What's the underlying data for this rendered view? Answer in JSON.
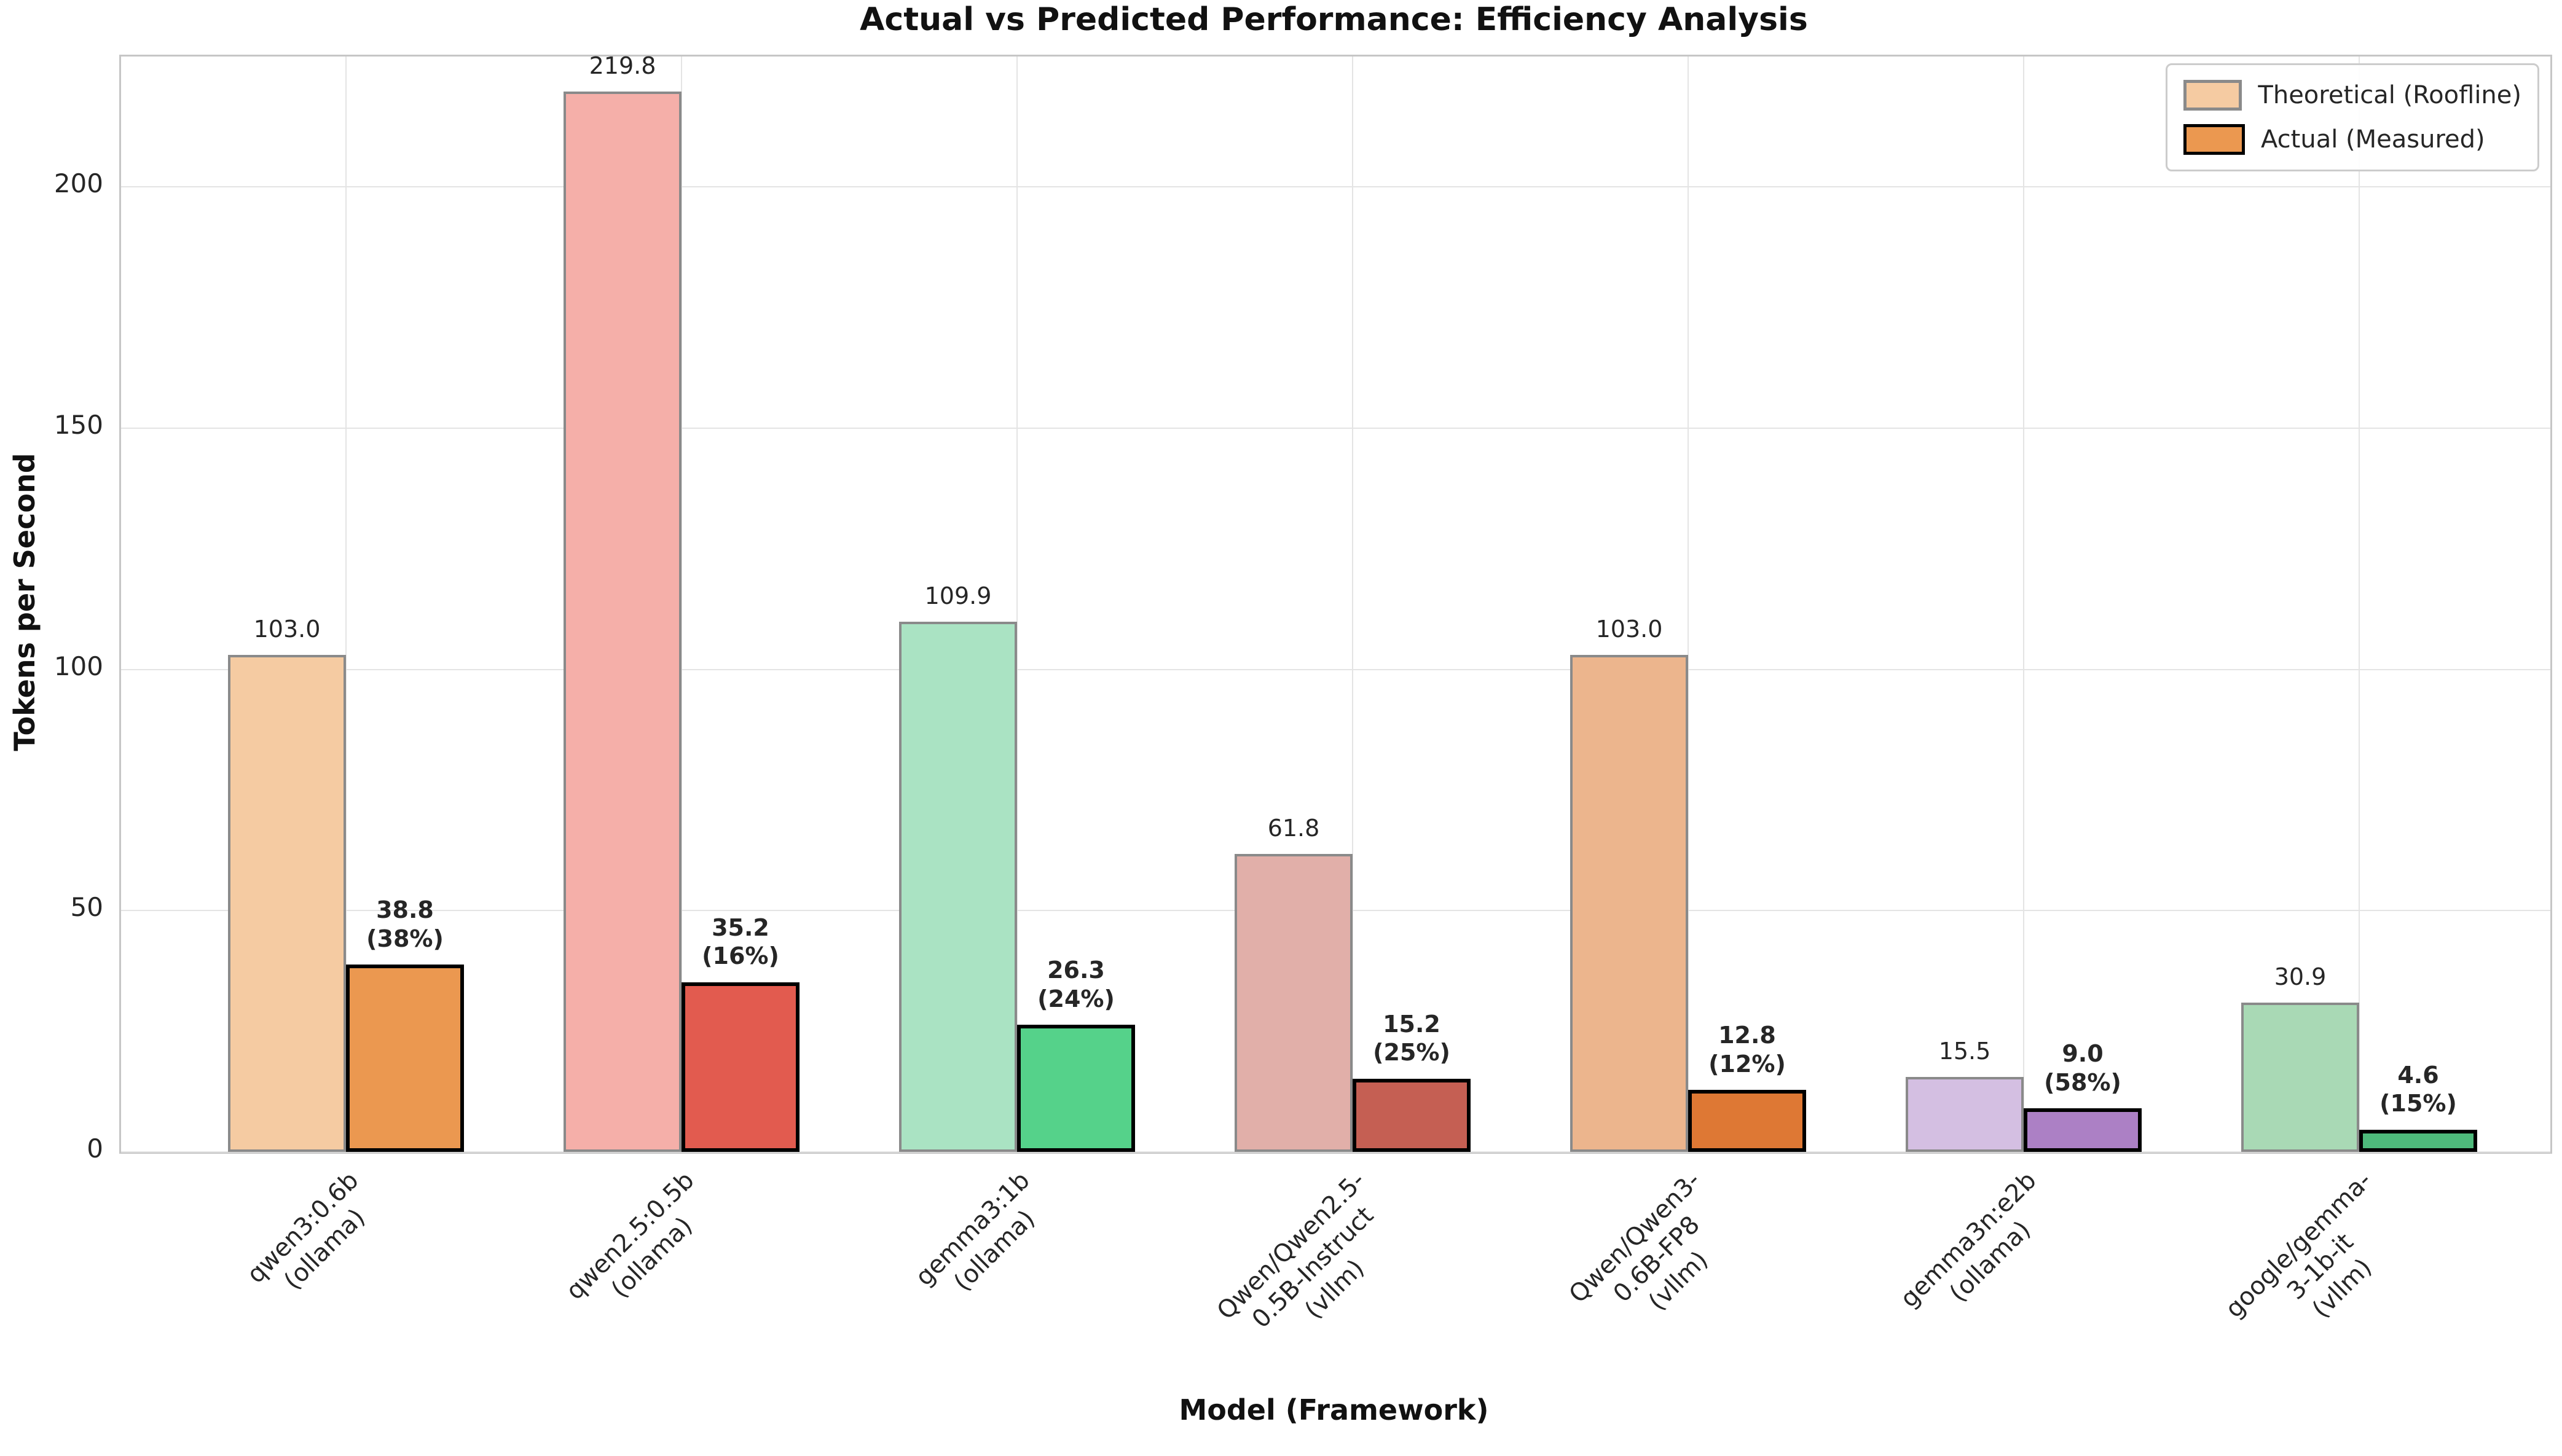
{
  "title": "Actual vs Predicted Performance: Efficiency Analysis",
  "legend": {
    "items": [
      {
        "label": "Theoretical (Roofline)",
        "fill": "#F5CBA2",
        "border": "#8A8A8A"
      },
      {
        "label": "Actual (Measured)",
        "fill": "#EB9850",
        "border": "#000000"
      }
    ]
  },
  "chart_data": {
    "type": "bar",
    "title": "Actual vs Predicted Performance: Efficiency Analysis",
    "xlabel": "Model (Framework)",
    "ylabel": "Tokens per Second",
    "ylim": [
      0,
      227
    ],
    "yticks": [
      0,
      50,
      100,
      150,
      200
    ],
    "ytick_labels": [
      "0",
      "50",
      "100",
      "150",
      "200"
    ],
    "grid": true,
    "legend_position": "upper right",
    "categories": [
      "qwen3:0.6b\n(ollama)",
      "qwen2.5:0.5b\n(ollama)",
      "gemma3:1b\n(ollama)",
      "Qwen/Qwen2.5-0.5B-Instruct\n(vllm)",
      "Qwen/Qwen3-0.6B-FP8\n(vllm)",
      "gemma3n:e2b\n(ollama)",
      "google/gemma-3-1b-it\n(vllm)"
    ],
    "series": [
      {
        "name": "Theoretical (Roofline)",
        "values": [
          103.0,
          219.8,
          109.9,
          61.8,
          103.0,
          15.5,
          30.9
        ]
      },
      {
        "name": "Actual (Measured)",
        "values": [
          38.8,
          35.2,
          26.3,
          15.2,
          12.8,
          9.0,
          4.6
        ]
      }
    ],
    "groups": [
      {
        "model": "qwen3:0.6b",
        "framework": "(ollama)",
        "theoretical": 103.0,
        "actual": 38.8,
        "efficiency_pct": 38,
        "theoretical_label": "103.0",
        "actual_label": "38.8",
        "pct_label": "(38%)",
        "theoretical_color": "#F5CBA2",
        "actual_color": "#EB9850"
      },
      {
        "model": "qwen2.5:0.5b",
        "framework": "(ollama)",
        "theoretical": 219.8,
        "actual": 35.2,
        "efficiency_pct": 16,
        "theoretical_label": "219.8",
        "actual_label": "35.2",
        "pct_label": "(16%)",
        "theoretical_color": "#F5AFA9",
        "actual_color": "#E25B4F"
      },
      {
        "model": "gemma3:1b",
        "framework": "(ollama)",
        "theoretical": 109.9,
        "actual": 26.3,
        "efficiency_pct": 24,
        "theoretical_label": "109.9",
        "actual_label": "26.3",
        "pct_label": "(24%)",
        "theoretical_color": "#AAE3C3",
        "actual_color": "#55D28A"
      },
      {
        "model": "Qwen/Qwen2.5-0.5B-Instruct",
        "framework": "(vllm)",
        "theoretical": 61.8,
        "actual": 15.2,
        "efficiency_pct": 25,
        "theoretical_label": "61.8",
        "actual_label": "15.2",
        "pct_label": "(25%)",
        "theoretical_color": "#E1AFA9",
        "actual_color": "#C55F53"
      },
      {
        "model": "Qwen/Qwen3-0.6B-FP8",
        "framework": "(vllm)",
        "theoretical": 103.0,
        "actual": 12.8,
        "efficiency_pct": 12,
        "theoretical_label": "103.0",
        "actual_label": "12.8",
        "pct_label": "(12%)",
        "theoretical_color": "#ECB58D",
        "actual_color": "#DE7834"
      },
      {
        "model": "gemma3n:e2b",
        "framework": "(ollama)",
        "theoretical": 15.5,
        "actual": 9.0,
        "efficiency_pct": 58,
        "theoretical_label": "15.5",
        "actual_label": "9.0",
        "pct_label": "(58%)",
        "theoretical_color": "#D4BFE2",
        "actual_color": "#AC80C5"
      },
      {
        "model": "google/gemma-3-1b-it",
        "framework": "(vllm)",
        "theoretical": 30.9,
        "actual": 4.6,
        "efficiency_pct": 15,
        "theoretical_label": "30.9",
        "actual_label": "4.6",
        "pct_label": "(15%)",
        "theoretical_color": "#A9D9B5",
        "actual_color": "#4EBA7B"
      }
    ]
  }
}
